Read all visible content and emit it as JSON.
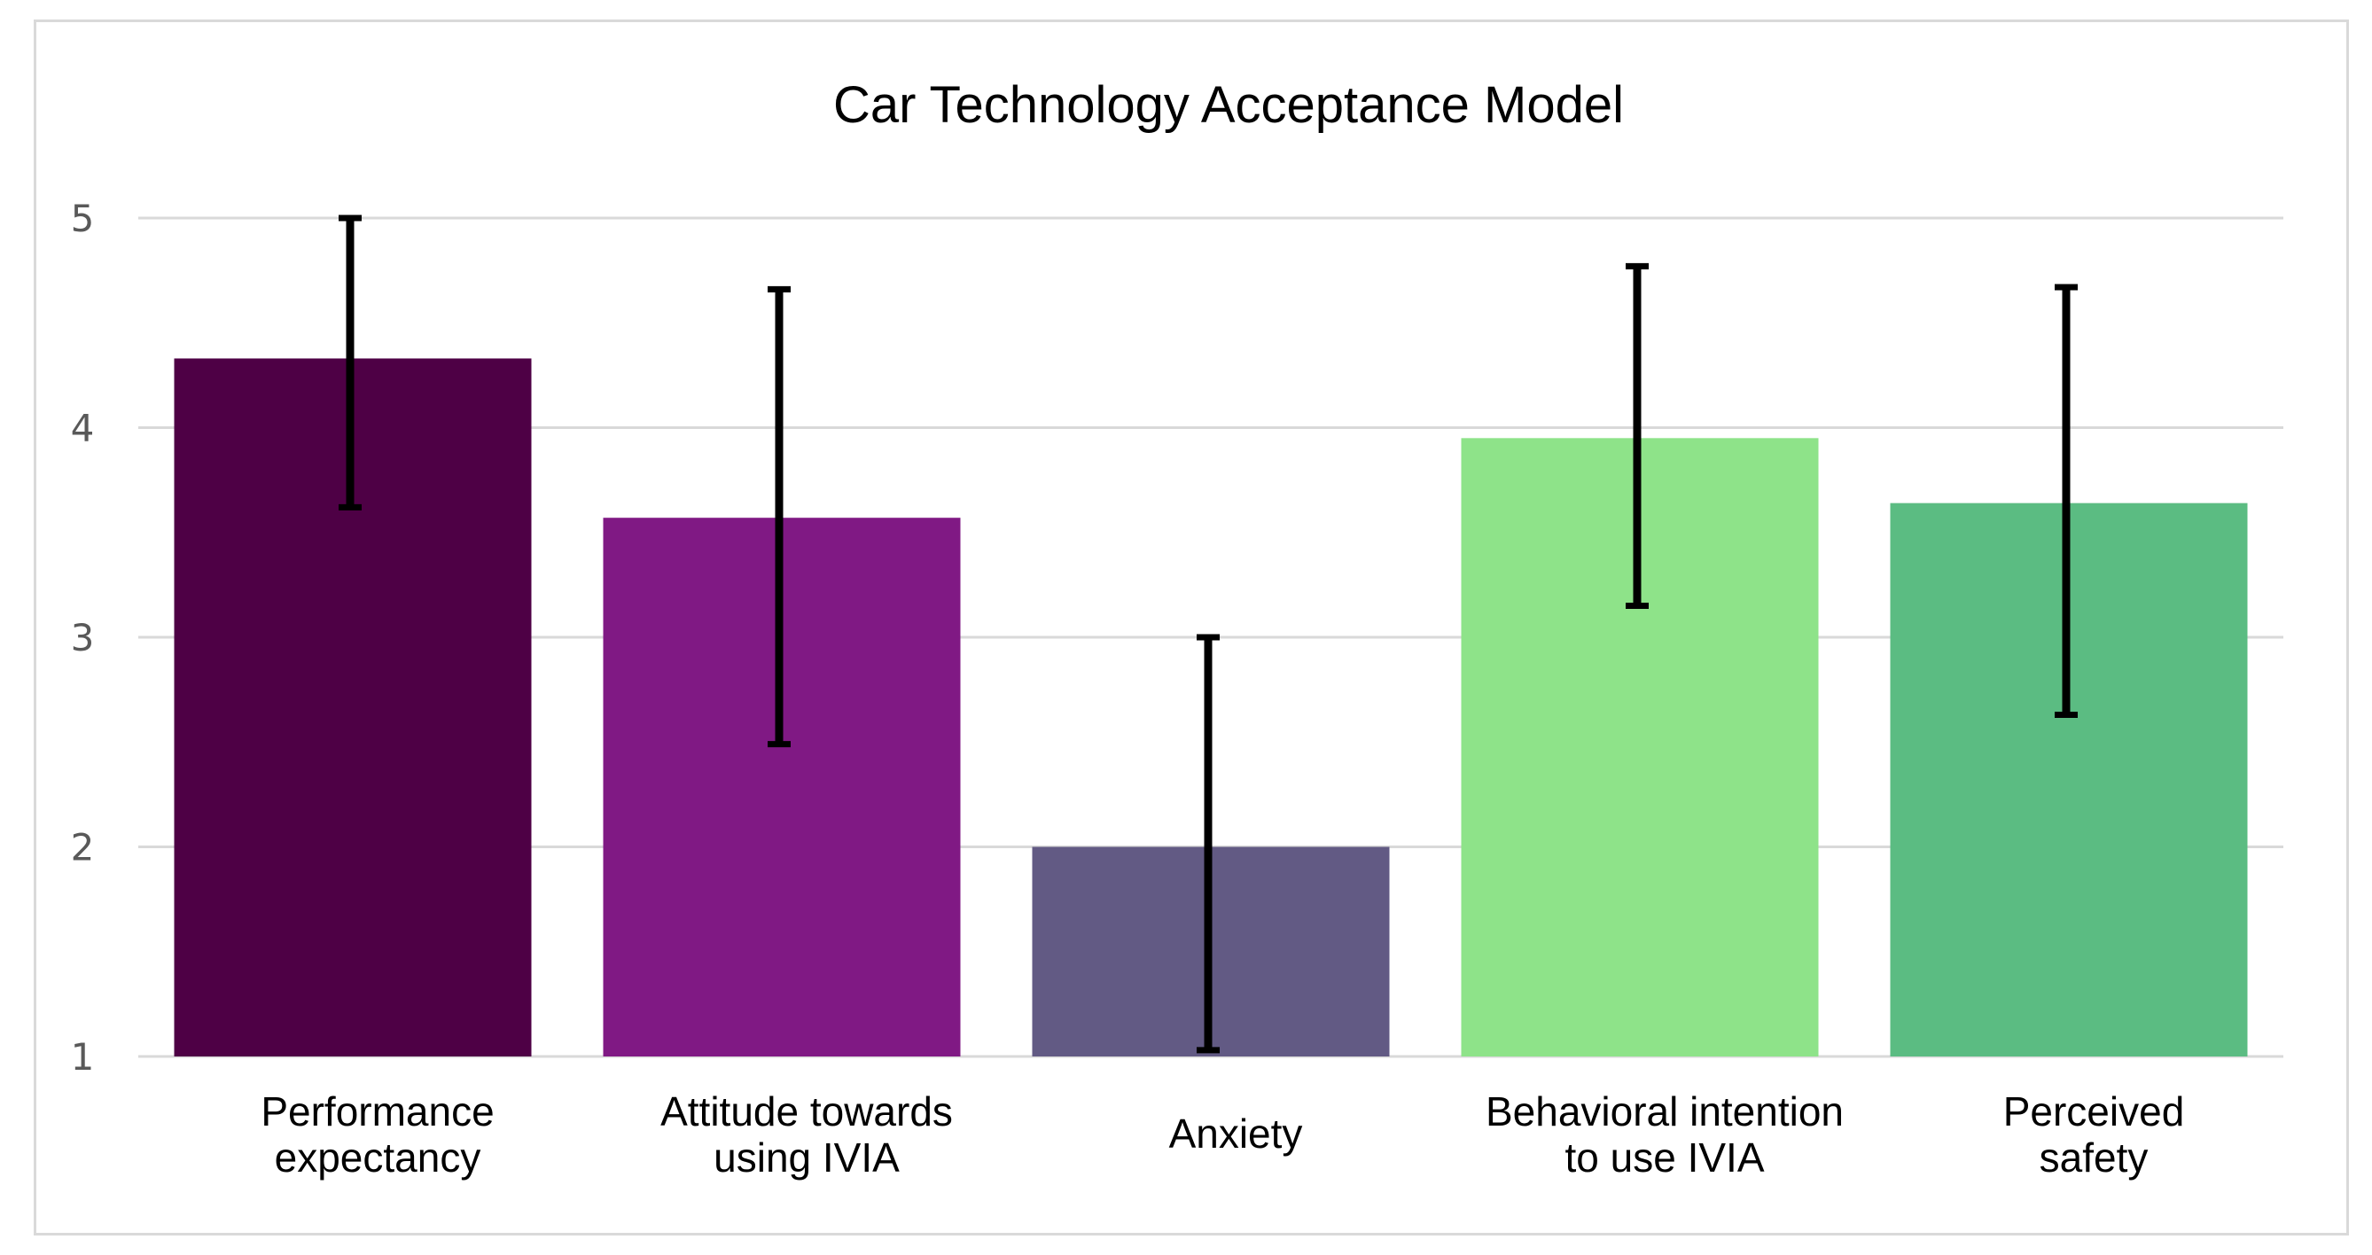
{
  "chart_data": {
    "type": "bar",
    "title": "Car Technology Acceptance Model",
    "xlabel": "",
    "ylabel": "",
    "ylim": [
      1,
      5
    ],
    "yticks": [
      1,
      2,
      3,
      4,
      5
    ],
    "grid": true,
    "legend": "none",
    "categories": [
      [
        "Performance",
        "expectancy"
      ],
      [
        "Attitude towards",
        "using IVIA"
      ],
      [
        "Anxiety"
      ],
      [
        "Behavioral intention",
        "to use IVIA"
      ],
      [
        "Perceived",
        "safety"
      ]
    ],
    "values": [
      4.33,
      3.57,
      2.0,
      3.95,
      3.64
    ],
    "error_low": [
      3.62,
      2.49,
      1.03,
      3.15,
      2.63
    ],
    "error_high": [
      5.0,
      4.66,
      3.0,
      4.77,
      4.67
    ],
    "colors": [
      "#4e0045",
      "#801984",
      "#625a84",
      "#8ee389",
      "#5bbc82"
    ]
  }
}
